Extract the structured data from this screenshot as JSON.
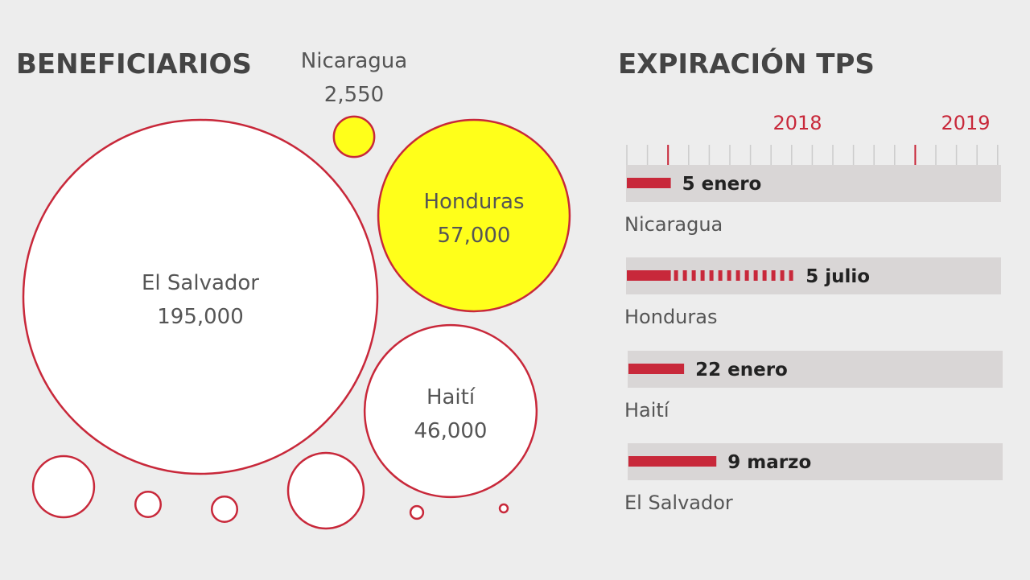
{
  "colors": {
    "accent": "#c8283a",
    "highlight": "#ffff1a",
    "bubble": "#ffffff",
    "track": "#d9d6d6",
    "background": "#ededed"
  },
  "chart_data": [
    {
      "type": "bubble",
      "title": "BENEFICIARIOS",
      "bubbles": [
        {
          "label": "El Salvador",
          "value": 195000,
          "value_label": "195,000",
          "highlight": false
        },
        {
          "label": "Honduras",
          "value": 57000,
          "value_label": "57,000",
          "highlight": true
        },
        {
          "label": "Haití",
          "value": 46000,
          "value_label": "46,000",
          "highlight": false
        },
        {
          "label": "Nicaragua",
          "value": 2550,
          "value_label": "2,550",
          "highlight": true
        },
        {
          "label": "",
          "value": 5800,
          "value_label": "",
          "highlight": false
        },
        {
          "label": "",
          "value": 1000,
          "value_label": "",
          "highlight": false
        },
        {
          "label": "",
          "value": 1000,
          "value_label": "",
          "highlight": false
        },
        {
          "label": "",
          "value": 8900,
          "value_label": "",
          "highlight": false
        },
        {
          "label": "",
          "value": 250,
          "value_label": "",
          "highlight": false
        },
        {
          "label": "",
          "value": 100,
          "value_label": "",
          "highlight": false
        }
      ]
    },
    {
      "type": "timeline",
      "title": "EXPIRACIÓN TPS",
      "x_range": [
        "2017-11",
        "2019-05"
      ],
      "year_ticks": [
        {
          "label": "2018",
          "date": "2018-01"
        },
        {
          "label": "2019",
          "date": "2019-01"
        }
      ],
      "rows": [
        {
          "country": "Nicaragua",
          "date_label": "5 enero",
          "end": "2018-01-05",
          "extension_end": null
        },
        {
          "country": "Honduras",
          "date_label": "5 julio",
          "end": "2018-01-05",
          "extension_end": "2018-07-05"
        },
        {
          "country": "Haití",
          "date_label": "22 enero",
          "end": "2018-01-22",
          "extension_end": null
        },
        {
          "country": "El Salvador",
          "date_label": "9 marzo",
          "end": "2018-03-09",
          "extension_end": null
        }
      ]
    }
  ]
}
